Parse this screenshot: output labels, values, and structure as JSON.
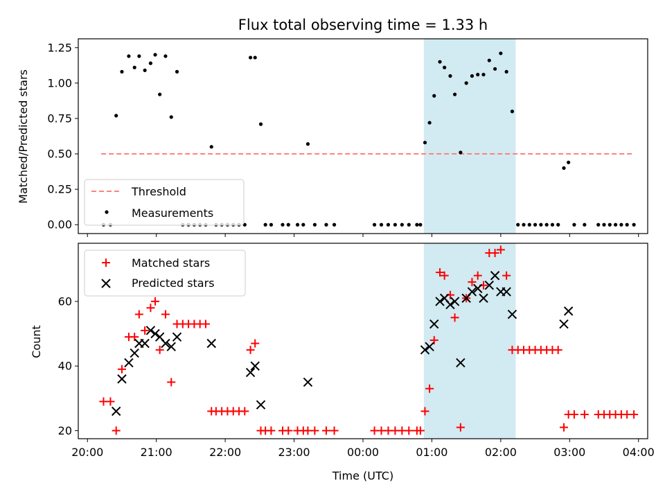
{
  "title": "Flux total observing time = 1.33 h",
  "xlabel": "Time (UTC)",
  "colors": {
    "threshold": "#ff8080",
    "measurements": "#000000",
    "matched": "#ff0000",
    "predicted": "#000000",
    "highlight": "#add8e6"
  },
  "chart_data": [
    {
      "type": "scatter",
      "ylabel": "Matched/Predicted stars",
      "ylim": [
        0,
        1.25
      ],
      "yticks": [
        "0.00",
        "0.25",
        "0.50",
        "0.75",
        "1.00",
        "1.25"
      ],
      "xlim": [
        "20:00",
        "04:00"
      ],
      "highlight_span": [
        "00:53",
        "02:13"
      ],
      "legend": {
        "location": "lower-left",
        "entries": [
          "Threshold",
          "Measurements"
        ]
      },
      "series": [
        {
          "name": "Threshold",
          "kind": "dashed-line",
          "points": [
            [
              "20:12",
              0.5
            ],
            [
              "03:55",
              0.5
            ]
          ]
        },
        {
          "name": "Measurements",
          "kind": "dot",
          "points": [
            [
              "20:14",
              0.0
            ],
            [
              "20:20",
              0.0
            ],
            [
              "20:25",
              0.77
            ],
            [
              "20:30",
              1.08
            ],
            [
              "20:36",
              1.19
            ],
            [
              "20:41",
              1.11
            ],
            [
              "20:45",
              1.19
            ],
            [
              "20:50",
              1.09
            ],
            [
              "20:55",
              1.14
            ],
            [
              "20:59",
              1.2
            ],
            [
              "21:03",
              0.92
            ],
            [
              "21:08",
              1.19
            ],
            [
              "21:13",
              0.76
            ],
            [
              "21:18",
              1.08
            ],
            [
              "21:23",
              0.0
            ],
            [
              "21:28",
              0.0
            ],
            [
              "21:33",
              0.0
            ],
            [
              "21:38",
              0.0
            ],
            [
              "21:43",
              0.0
            ],
            [
              "21:48",
              0.55
            ],
            [
              "21:52",
              0.0
            ],
            [
              "21:57",
              0.0
            ],
            [
              "22:02",
              0.0
            ],
            [
              "22:07",
              0.0
            ],
            [
              "22:12",
              0.0
            ],
            [
              "22:17",
              0.0
            ],
            [
              "22:22",
              1.18
            ],
            [
              "22:26",
              1.18
            ],
            [
              "22:31",
              0.71
            ],
            [
              "22:35",
              0.0
            ],
            [
              "22:40",
              0.0
            ],
            [
              "22:50",
              0.0
            ],
            [
              "22:55",
              0.0
            ],
            [
              "23:03",
              0.0
            ],
            [
              "23:08",
              0.0
            ],
            [
              "23:12",
              0.57
            ],
            [
              "23:18",
              0.0
            ],
            [
              "23:28",
              0.0
            ],
            [
              "23:35",
              0.0
            ],
            [
              "00:10",
              0.0
            ],
            [
              "00:16",
              0.0
            ],
            [
              "00:22",
              0.0
            ],
            [
              "00:28",
              0.0
            ],
            [
              "00:34",
              0.0
            ],
            [
              "00:40",
              0.0
            ],
            [
              "00:47",
              0.0
            ],
            [
              "00:50",
              0.0
            ],
            [
              "00:54",
              0.58
            ],
            [
              "00:58",
              0.72
            ],
            [
              "01:02",
              0.91
            ],
            [
              "01:07",
              1.15
            ],
            [
              "01:11",
              1.11
            ],
            [
              "01:16",
              1.05
            ],
            [
              "01:20",
              0.92
            ],
            [
              "01:25",
              0.51
            ],
            [
              "01:30",
              1.0
            ],
            [
              "01:35",
              1.05
            ],
            [
              "01:40",
              1.06
            ],
            [
              "01:45",
              1.06
            ],
            [
              "01:50",
              1.16
            ],
            [
              "01:55",
              1.1
            ],
            [
              "02:00",
              1.21
            ],
            [
              "02:05",
              1.08
            ],
            [
              "02:10",
              0.8
            ],
            [
              "02:15",
              0.0
            ],
            [
              "02:20",
              0.0
            ],
            [
              "02:25",
              0.0
            ],
            [
              "02:30",
              0.0
            ],
            [
              "02:35",
              0.0
            ],
            [
              "02:40",
              0.0
            ],
            [
              "02:45",
              0.0
            ],
            [
              "02:50",
              0.0
            ],
            [
              "02:55",
              0.4
            ],
            [
              "02:59",
              0.44
            ],
            [
              "03:04",
              0.0
            ],
            [
              "03:13",
              0.0
            ],
            [
              "03:25",
              0.0
            ],
            [
              "03:30",
              0.0
            ],
            [
              "03:35",
              0.0
            ],
            [
              "03:40",
              0.0
            ],
            [
              "03:45",
              0.0
            ],
            [
              "03:50",
              0.0
            ],
            [
              "03:56",
              0.0
            ]
          ]
        }
      ]
    },
    {
      "type": "scatter",
      "ylabel": "Count",
      "ylim": [
        17.5,
        78
      ],
      "yticks": [
        "20",
        "40",
        "60"
      ],
      "xlim": [
        "20:00",
        "04:00"
      ],
      "xticks": [
        "20:00",
        "21:00",
        "22:00",
        "23:00",
        "00:00",
        "01:00",
        "02:00",
        "03:00",
        "04:00"
      ],
      "highlight_span": [
        "00:53",
        "02:13"
      ],
      "legend": {
        "location": "top-left",
        "entries": [
          "Matched stars",
          "Predicted stars"
        ]
      },
      "series": [
        {
          "name": "Matched stars",
          "kind": "plus",
          "points": [
            [
              "20:14",
              29
            ],
            [
              "20:20",
              29
            ],
            [
              "20:25",
              20
            ],
            [
              "20:30",
              39
            ],
            [
              "20:36",
              49
            ],
            [
              "20:41",
              49
            ],
            [
              "20:45",
              56
            ],
            [
              "20:50",
              51
            ],
            [
              "20:55",
              58
            ],
            [
              "20:59",
              60
            ],
            [
              "21:03",
              45
            ],
            [
              "21:08",
              56
            ],
            [
              "21:13",
              35
            ],
            [
              "21:18",
              53
            ],
            [
              "21:23",
              53
            ],
            [
              "21:28",
              53
            ],
            [
              "21:33",
              53
            ],
            [
              "21:38",
              53
            ],
            [
              "21:43",
              53
            ],
            [
              "21:48",
              26
            ],
            [
              "21:52",
              26
            ],
            [
              "21:57",
              26
            ],
            [
              "22:02",
              26
            ],
            [
              "22:07",
              26
            ],
            [
              "22:12",
              26
            ],
            [
              "22:17",
              26
            ],
            [
              "22:22",
              45
            ],
            [
              "22:26",
              47
            ],
            [
              "22:31",
              20
            ],
            [
              "22:35",
              20
            ],
            [
              "22:40",
              20
            ],
            [
              "22:50",
              20
            ],
            [
              "22:55",
              20
            ],
            [
              "23:03",
              20
            ],
            [
              "23:08",
              20
            ],
            [
              "23:12",
              20
            ],
            [
              "23:18",
              20
            ],
            [
              "23:28",
              20
            ],
            [
              "23:35",
              20
            ],
            [
              "00:10",
              20
            ],
            [
              "00:16",
              20
            ],
            [
              "00:22",
              20
            ],
            [
              "00:28",
              20
            ],
            [
              "00:34",
              20
            ],
            [
              "00:40",
              20
            ],
            [
              "00:47",
              20
            ],
            [
              "00:50",
              20
            ],
            [
              "00:54",
              26
            ],
            [
              "00:58",
              33
            ],
            [
              "01:02",
              48
            ],
            [
              "01:07",
              69
            ],
            [
              "01:11",
              68
            ],
            [
              "01:16",
              62
            ],
            [
              "01:20",
              55
            ],
            [
              "01:25",
              21
            ],
            [
              "01:30",
              61
            ],
            [
              "01:35",
              66
            ],
            [
              "01:40",
              68
            ],
            [
              "01:45",
              65
            ],
            [
              "01:50",
              75
            ],
            [
              "01:55",
              75
            ],
            [
              "02:00",
              76
            ],
            [
              "02:05",
              68
            ],
            [
              "02:10",
              45
            ],
            [
              "02:15",
              45
            ],
            [
              "02:20",
              45
            ],
            [
              "02:25",
              45
            ],
            [
              "02:30",
              45
            ],
            [
              "02:35",
              45
            ],
            [
              "02:40",
              45
            ],
            [
              "02:45",
              45
            ],
            [
              "02:50",
              45
            ],
            [
              "02:55",
              21
            ],
            [
              "02:59",
              25
            ],
            [
              "03:04",
              25
            ],
            [
              "03:13",
              25
            ],
            [
              "03:25",
              25
            ],
            [
              "03:30",
              25
            ],
            [
              "03:35",
              25
            ],
            [
              "03:40",
              25
            ],
            [
              "03:45",
              25
            ],
            [
              "03:50",
              25
            ],
            [
              "03:56",
              25
            ]
          ]
        },
        {
          "name": "Predicted stars",
          "kind": "x",
          "points": [
            [
              "20:25",
              26
            ],
            [
              "20:30",
              36
            ],
            [
              "20:36",
              41
            ],
            [
              "20:41",
              44
            ],
            [
              "20:45",
              47
            ],
            [
              "20:50",
              47
            ],
            [
              "20:55",
              51
            ],
            [
              "20:59",
              50
            ],
            [
              "21:03",
              49
            ],
            [
              "21:08",
              47
            ],
            [
              "21:13",
              46
            ],
            [
              "21:18",
              49
            ],
            [
              "21:48",
              47
            ],
            [
              "22:22",
              38
            ],
            [
              "22:26",
              40
            ],
            [
              "22:31",
              28
            ],
            [
              "23:12",
              35
            ],
            [
              "00:54",
              45
            ],
            [
              "00:58",
              46
            ],
            [
              "01:02",
              53
            ],
            [
              "01:07",
              60
            ],
            [
              "01:11",
              61
            ],
            [
              "01:16",
              59
            ],
            [
              "01:20",
              60
            ],
            [
              "01:25",
              41
            ],
            [
              "01:30",
              61
            ],
            [
              "01:35",
              63
            ],
            [
              "01:40",
              64
            ],
            [
              "01:45",
              61
            ],
            [
              "01:50",
              65
            ],
            [
              "01:55",
              68
            ],
            [
              "02:00",
              63
            ],
            [
              "02:05",
              63
            ],
            [
              "02:10",
              56
            ],
            [
              "02:55",
              53
            ],
            [
              "02:59",
              57
            ]
          ]
        }
      ]
    }
  ]
}
